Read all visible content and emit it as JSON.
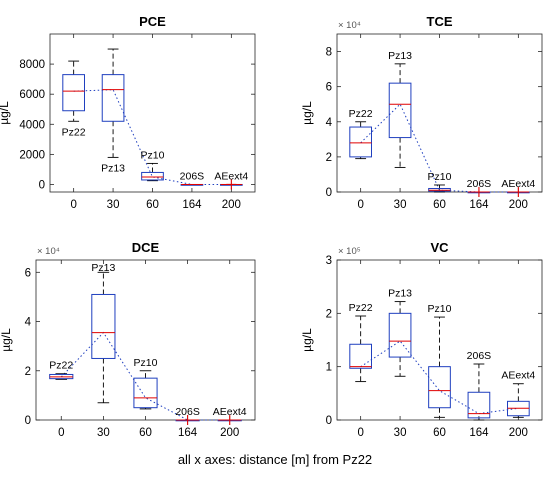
{
  "footer": "all x axes: distance [m] from Pz22",
  "chart_data": [
    {
      "type": "box",
      "title": "PCE",
      "ylabel": "µg/L",
      "exponent_label": "",
      "categories": [
        "0",
        "30",
        "60",
        "164",
        "200"
      ],
      "ylim": [
        -500,
        10000
      ],
      "yticks": [
        0,
        2000,
        4000,
        6000,
        8000
      ],
      "ytick_labels": [
        "0",
        "2000",
        "4000",
        "6000",
        "8000"
      ],
      "well_labels": [
        "Pz22",
        "Pz13",
        "Pz10",
        "206S",
        "AEext4"
      ],
      "well_label_pos": [
        "below",
        "below",
        "above",
        "above",
        "above"
      ],
      "boxes": [
        {
          "min": 4200,
          "q1": 4900,
          "median": 6200,
          "q3": 7300,
          "max": 8200
        },
        {
          "min": 1800,
          "q1": 4200,
          "median": 6300,
          "q3": 7300,
          "max": 9000
        },
        {
          "min": 250,
          "q1": 300,
          "median": 500,
          "q3": 800,
          "max": 1400
        },
        {
          "min": 0,
          "q1": 0,
          "median": 0,
          "q3": 0,
          "max": 0
        },
        {
          "min": 0,
          "q1": 0,
          "median": 0,
          "q3": 0,
          "max": 0
        }
      ],
      "outliers": [
        [],
        [],
        [],
        [],
        [
          0
        ]
      ]
    },
    {
      "type": "box",
      "title": "TCE",
      "ylabel": "µg/L",
      "exponent_label": "× 10⁴",
      "categories": [
        "0",
        "30",
        "60",
        "164",
        "200"
      ],
      "ylim": [
        0,
        90000
      ],
      "yticks": [
        0,
        20000,
        40000,
        60000,
        80000
      ],
      "ytick_labels": [
        "0",
        "2",
        "4",
        "6",
        "8"
      ],
      "well_labels": [
        "Pz22",
        "Pz13",
        "Pz10",
        "206S",
        "AEext4"
      ],
      "well_label_pos": [
        "above",
        "above",
        "above",
        "above",
        "above"
      ],
      "boxes": [
        {
          "min": 19000,
          "q1": 20000,
          "median": 28000,
          "q3": 37000,
          "max": 40000
        },
        {
          "min": 14000,
          "q1": 31000,
          "median": 50000,
          "q3": 62000,
          "max": 73000
        },
        {
          "min": 0,
          "q1": 500,
          "median": 1000,
          "q3": 2000,
          "max": 4000
        },
        {
          "min": 0,
          "q1": 0,
          "median": 0,
          "q3": 0,
          "max": 0
        },
        {
          "min": 0,
          "q1": 0,
          "median": 0,
          "q3": 0,
          "max": 0
        }
      ],
      "outliers": [
        [],
        [],
        [],
        [
          0
        ],
        [
          0
        ]
      ]
    },
    {
      "type": "box",
      "title": "DCE",
      "ylabel": "µg/L",
      "exponent_label": "× 10⁴",
      "categories": [
        "0",
        "30",
        "60",
        "164",
        "200"
      ],
      "ylim": [
        0,
        65000
      ],
      "yticks": [
        0,
        20000,
        40000,
        60000
      ],
      "ytick_labels": [
        "0",
        "2",
        "4",
        "6"
      ],
      "well_labels": [
        "Pz22",
        "Pz13",
        "Pz10",
        "206S",
        "AEext4"
      ],
      "well_label_pos": [
        "above",
        "above",
        "above",
        "above",
        "above"
      ],
      "boxes": [
        {
          "min": 16500,
          "q1": 16800,
          "median": 17500,
          "q3": 18500,
          "max": 18800
        },
        {
          "min": 7000,
          "q1": 25000,
          "median": 35500,
          "q3": 51000,
          "max": 60000
        },
        {
          "min": 4500,
          "q1": 5000,
          "median": 9000,
          "q3": 17000,
          "max": 20000
        },
        {
          "min": 0,
          "q1": 0,
          "median": 0,
          "q3": 0,
          "max": 0
        },
        {
          "min": 0,
          "q1": 0,
          "median": 0,
          "q3": 0,
          "max": 0
        }
      ],
      "outliers": [
        [],
        [],
        [],
        [
          0
        ],
        [
          0
        ]
      ]
    },
    {
      "type": "box",
      "title": "VC",
      "ylabel": "µg/L",
      "exponent_label": "× 10⁵",
      "categories": [
        "0",
        "30",
        "60",
        "164",
        "200"
      ],
      "ylim": [
        0,
        300000
      ],
      "yticks": [
        0,
        100000,
        200000,
        300000
      ],
      "ytick_labels": [
        "0",
        "1",
        "2",
        "3"
      ],
      "well_labels": [
        "Pz22",
        "Pz13",
        "Pz10",
        "206S",
        "AEext4"
      ],
      "well_label_pos": [
        "above",
        "above",
        "above",
        "above",
        "above"
      ],
      "boxes": [
        {
          "min": 72000,
          "q1": 97000,
          "median": 100000,
          "q3": 142000,
          "max": 195000
        },
        {
          "min": 82000,
          "q1": 118000,
          "median": 148000,
          "q3": 200000,
          "max": 222000
        },
        {
          "min": 5000,
          "q1": 23000,
          "median": 55000,
          "q3": 100000,
          "max": 193000
        },
        {
          "min": 0,
          "q1": 4000,
          "median": 12000,
          "q3": 52000,
          "max": 105000
        },
        {
          "min": 5000,
          "q1": 8000,
          "median": 22000,
          "q3": 35000,
          "max": 68000
        }
      ],
      "outliers": [
        [],
        [],
        [],
        [],
        []
      ]
    }
  ]
}
